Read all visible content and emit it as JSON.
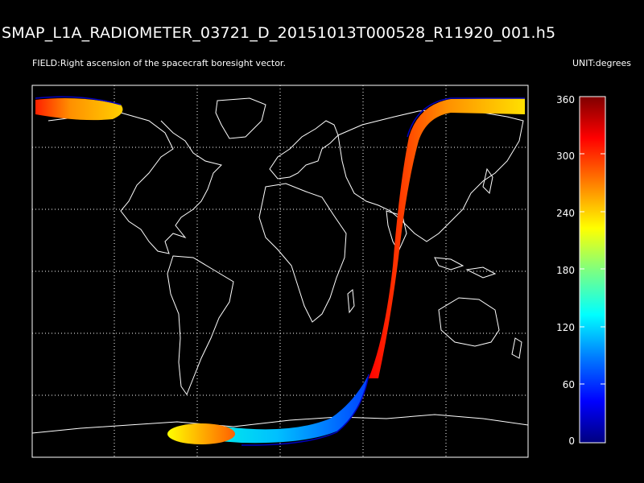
{
  "title": "SMAP_L1A_RADIOMETER_03721_D_20151013T000528_R11920_001.h5",
  "field_label": "FIELD:Right ascension of the spacecraft boresight vector.",
  "unit_label": "UNIT:degrees",
  "colorbar": {
    "ticks": [
      "360",
      "300",
      "240",
      "180",
      "120",
      "60",
      "0"
    ],
    "min": 0,
    "max": 360,
    "colors": [
      "#00007f",
      "#0000ff",
      "#007fff",
      "#00ffff",
      "#7fff7f",
      "#ffff00",
      "#ff7f00",
      "#ff0000",
      "#7f0000"
    ]
  },
  "map": {
    "coastline_color": "#ffffff",
    "grid": "dotted",
    "projection": "equirectangular"
  },
  "swath": {
    "description_visible": false
  }
}
